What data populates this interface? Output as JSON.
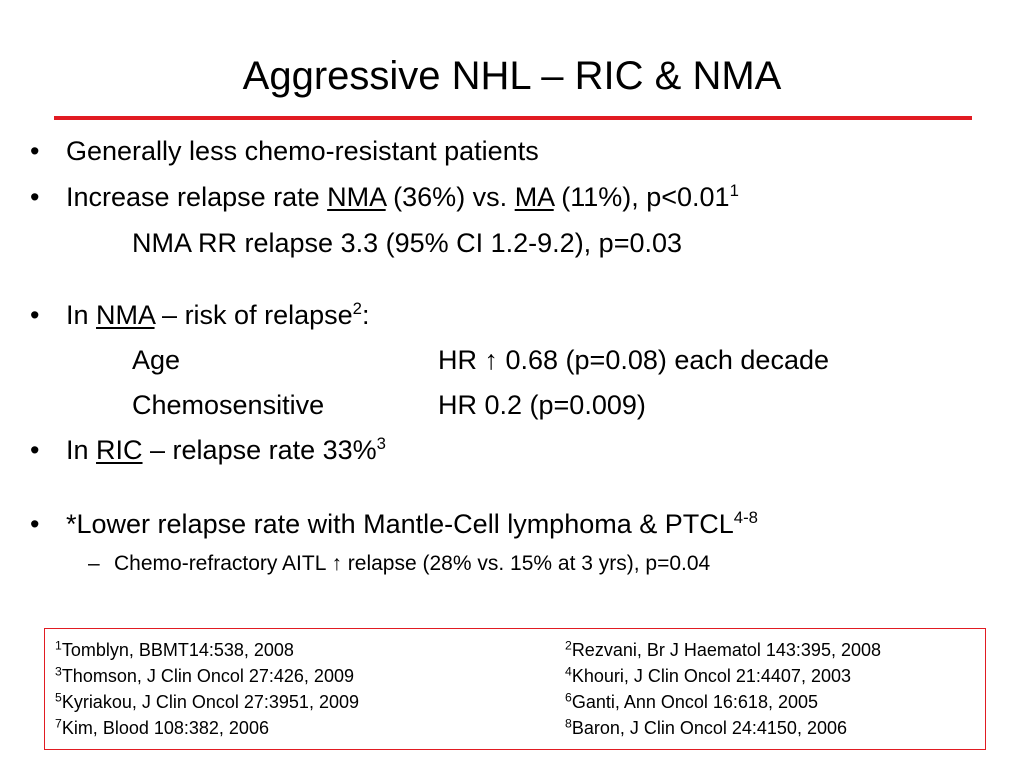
{
  "title": "Aggressive NHL – RIC & NMA",
  "bullet_glyph": "•",
  "bullets": {
    "b1": "Generally less chemo-resistant patients",
    "b2": {
      "pre": "Increase relapse rate ",
      "nma": "NMA",
      "mid": " (36%) vs. ",
      "ma": "MA",
      "post": " (11%), p<0.01",
      "sup": "1",
      "sub": "NMA RR relapse 3.3 (95% CI 1.2-9.2), p=0.03"
    },
    "b3": {
      "pre": "In ",
      "nma": "NMA",
      "post": " – risk of relapse",
      "sup": "2",
      "colon": ":",
      "rows": [
        {
          "label": "Age",
          "value": "HR ↑ 0.68 (p=0.08) each decade"
        },
        {
          "label": "Chemosensitive",
          "value": "HR 0.2 (p=0.009)"
        }
      ]
    },
    "b4": {
      "pre": "In ",
      "ric": "RIC",
      "post": " – relapse rate 33%",
      "sup": "3"
    },
    "b5": {
      "text": "*Lower relapse rate with Mantle-Cell lymphoma & PTCL",
      "sup": "4-8",
      "dash": "–",
      "sub": "Chemo-refractory AITL ↑ relapse (28% vs. 15% at 3 yrs), p=0.04"
    }
  },
  "references": [
    {
      "num": "1",
      "text": "Tomblyn, BBMT14:538, 2008"
    },
    {
      "num": "2",
      "text": "Rezvani, Br J Haematol 143:395, 2008"
    },
    {
      "num": "3",
      "text": "Thomson, J Clin Oncol 27:426, 2009"
    },
    {
      "num": "4",
      "text": "Khouri, J Clin Oncol 21:4407, 2003"
    },
    {
      "num": "5",
      "text": "Kyriakou, J Clin Oncol 27:3951, 2009"
    },
    {
      "num": "6",
      "text": "Ganti, Ann Oncol 16:618, 2005"
    },
    {
      "num": "7",
      "text": "Kim, Blood 108:382, 2006"
    },
    {
      "num": "8",
      "text": "Baron, J Clin Oncol 24:4150, 2006"
    }
  ],
  "colors": {
    "accent": "#e11b22",
    "text": "#000000",
    "background": "#ffffff"
  }
}
